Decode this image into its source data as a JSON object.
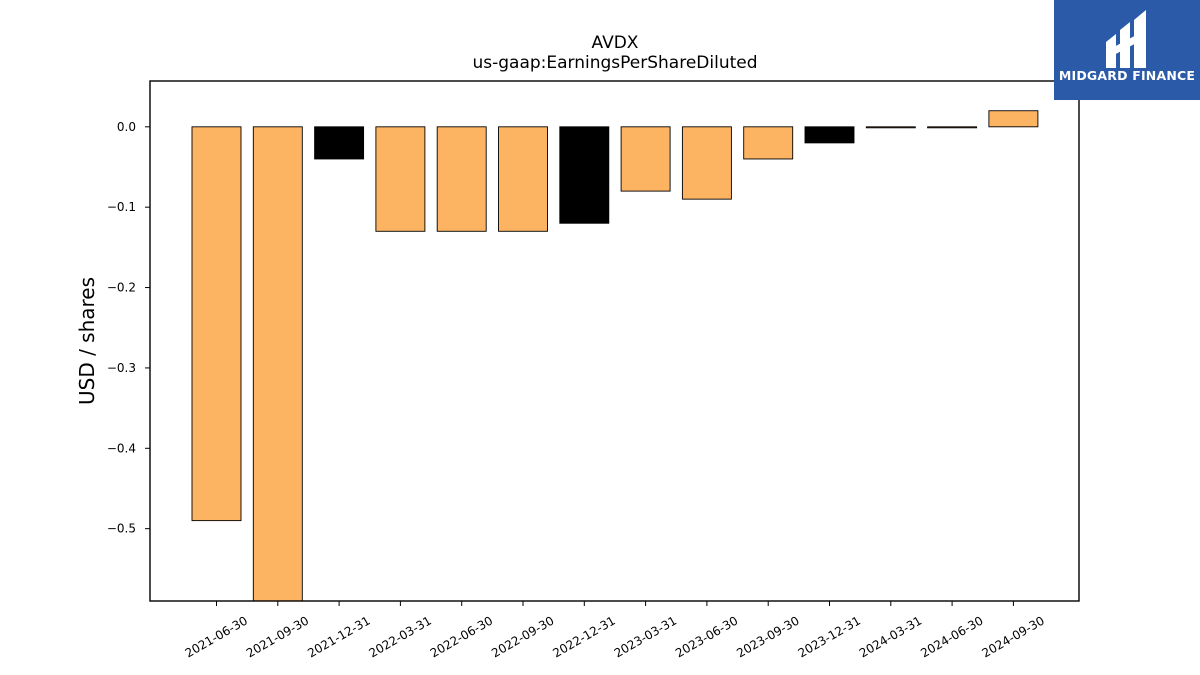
{
  "chart_data": {
    "type": "bar",
    "title": "AVDX",
    "subtitle": "us-gaap:EarningsPerShareDiluted",
    "xlabel": "",
    "ylabel": "USD / shares",
    "ylim": [
      -0.59,
      0.057
    ],
    "yticks": [
      "0.0",
      "−0.1",
      "−0.2",
      "−0.3",
      "−0.4",
      "−0.5"
    ],
    "ytick_values": [
      0.0,
      -0.1,
      -0.2,
      -0.3,
      -0.4,
      -0.5
    ],
    "categories": [
      "2021-06-30",
      "2021-09-30",
      "2021-12-31",
      "2022-03-31",
      "2022-06-30",
      "2022-09-30",
      "2022-12-31",
      "2023-03-31",
      "2023-06-30",
      "2023-09-30",
      "2023-12-31",
      "2024-03-31",
      "2024-06-30",
      "2024-09-30"
    ],
    "values": [
      -0.49,
      -0.59,
      -0.04,
      -0.13,
      -0.13,
      -0.13,
      -0.12,
      -0.08,
      -0.09,
      -0.04,
      -0.02,
      0.0,
      0.0,
      0.02
    ],
    "bar_colors": [
      "#fdb462",
      "#fdb462",
      "#000000",
      "#fdb462",
      "#fdb462",
      "#fdb462",
      "#000000",
      "#fdb462",
      "#fdb462",
      "#fdb462",
      "#000000",
      "#fdb462",
      "#fdb462",
      "#fdb462"
    ],
    "grid": false,
    "legend": "none"
  },
  "logo": {
    "text": "MIDGARD FINANCE",
    "background": "#2b5aa8"
  }
}
